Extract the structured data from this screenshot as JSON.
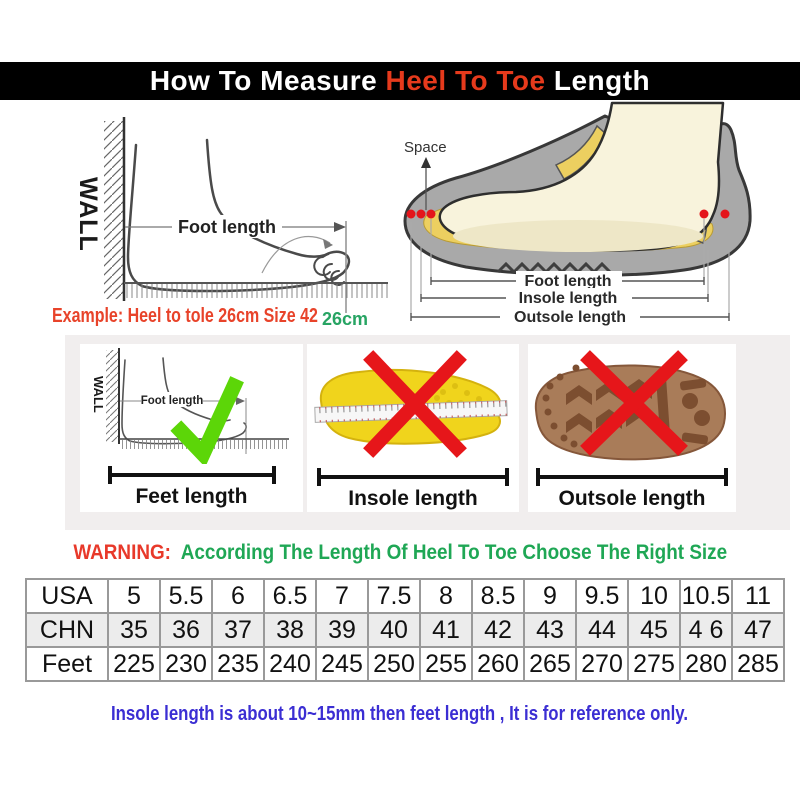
{
  "header": {
    "title_prefix": "How To Measure ",
    "title_highlight": "Heel To Toe",
    "title_suffix": " Length"
  },
  "measure_diagram": {
    "wall_label": "WALL",
    "foot_length_label": "Foot length",
    "example_text": "Example: Heel to tole 26cm Size 42",
    "ruler_value": "26cm"
  },
  "shoe_diagram": {
    "space_label": "Space",
    "foot_length_label": "Foot length",
    "insole_length_label": "Insole length",
    "outsole_length_label": "Outsole length"
  },
  "panels": [
    {
      "label": "Feet length",
      "mark": "check",
      "wall_label": "WALL",
      "foot_length_label": "Foot length"
    },
    {
      "label": "Insole length",
      "mark": "cross"
    },
    {
      "label": "Outsole length",
      "mark": "cross"
    }
  ],
  "warning": {
    "label": "WARNING:",
    "message": "According The Length Of Heel To Toe Choose The Right Size"
  },
  "size_table": {
    "rows": [
      {
        "label": "USA",
        "values": [
          "5",
          "5.5",
          "6",
          "6.5",
          "7",
          "7.5",
          "8",
          "8.5",
          "9",
          "9.5",
          "10",
          "10.5",
          "11"
        ]
      },
      {
        "label": "CHN",
        "values": [
          "35",
          "36",
          "37",
          "38",
          "39",
          "40",
          "41",
          "42",
          "43",
          "44",
          "45",
          "4 6",
          "47"
        ]
      },
      {
        "label": "Feet",
        "values": [
          "225",
          "230",
          "235",
          "240",
          "245",
          "250",
          "255",
          "260",
          "265",
          "270",
          "275",
          "280",
          "285"
        ]
      }
    ]
  },
  "footnote": "Insole length is about 10~15mm then feet length , It is for reference only.",
  "colors": {
    "header_bg": "#000000",
    "header_text": "#ffffff",
    "highlight_red": "#e63a1c",
    "example_red": "#e8432a",
    "measure_green": "#27a463",
    "warning_red": "#e8392a",
    "warning_green": "#1fa755",
    "note_blue": "#3b2ed3",
    "check_green": "#5cd608",
    "cross_red": "#e6161a",
    "insole_yellow": "#f0d41c",
    "outsole_brown": "#a97c59",
    "shoe_gray": "#a9a9a9",
    "foot_cream": "#f8f3dc"
  }
}
